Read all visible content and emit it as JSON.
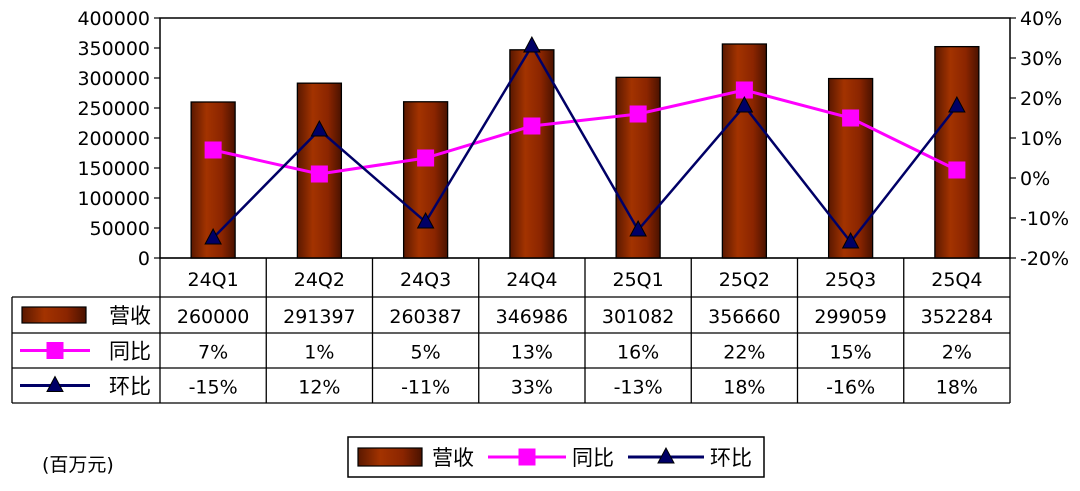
{
  "chart_data": {
    "type": "bar",
    "categories": [
      "24Q1",
      "24Q2",
      "24Q3",
      "24Q4",
      "25Q1",
      "25Q2",
      "25Q3",
      "25Q4"
    ],
    "series": [
      {
        "name": "营收",
        "type": "bar",
        "axis": "left",
        "values": [
          260000,
          291397,
          260387,
          346986,
          301082,
          356660,
          299059,
          352284
        ],
        "labels": [
          "260000",
          "291397",
          "260387",
          "346986",
          "301082",
          "356660",
          "299059",
          "352284"
        ],
        "color": "#8B2500"
      },
      {
        "name": "同比",
        "type": "line",
        "axis": "right",
        "marker": "square",
        "values": [
          7,
          1,
          5,
          13,
          16,
          22,
          15,
          2
        ],
        "labels": [
          "7%",
          "1%",
          "5%",
          "13%",
          "16%",
          "22%",
          "15%",
          "2%"
        ],
        "color": "#FF00FF"
      },
      {
        "name": "环比",
        "type": "line",
        "axis": "right",
        "marker": "triangle",
        "values": [
          -15,
          12,
          -11,
          33,
          -13,
          18,
          -16,
          18
        ],
        "labels": [
          "-15%",
          "12%",
          "-11%",
          "33%",
          "-13%",
          "18%",
          "-16%",
          "18%"
        ],
        "color": "#000066"
      }
    ],
    "ylim": [
      0,
      400000
    ],
    "yticks": [
      "0",
      "50000",
      "100000",
      "150000",
      "200000",
      "250000",
      "300000",
      "350000",
      "400000"
    ],
    "y2lim": [
      -20,
      40
    ],
    "y2ticks": [
      "-20%",
      "-10%",
      "0%",
      "10%",
      "20%",
      "30%",
      "40%"
    ],
    "unit_label": "(百万元)",
    "grid": false,
    "data_table": true,
    "legend_position": "bottom"
  }
}
